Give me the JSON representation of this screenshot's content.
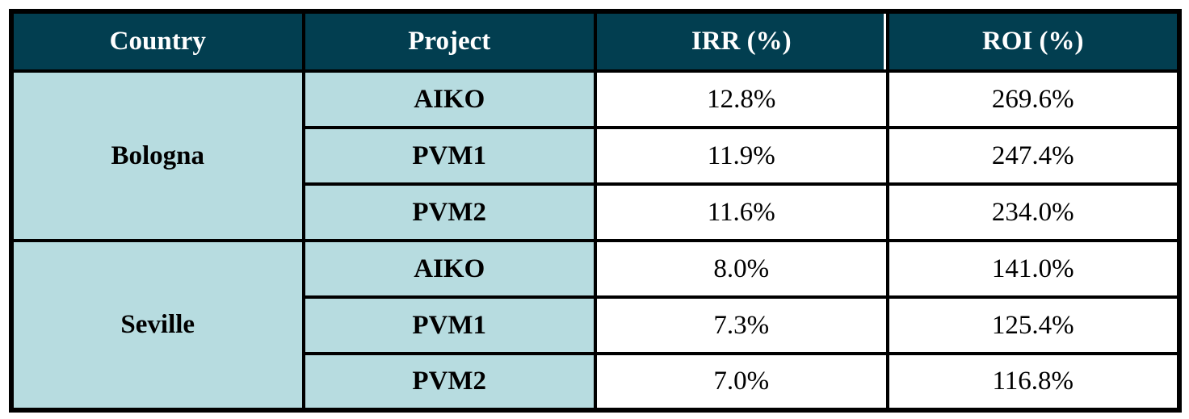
{
  "table": {
    "columns": [
      "Country",
      "Project",
      "IRR (%)",
      "ROI (%)"
    ],
    "groups": [
      {
        "country": "Bologna",
        "rows": [
          {
            "project": "AIKO",
            "irr": "12.8%",
            "roi": "269.6%"
          },
          {
            "project": "PVM1",
            "irr": "11.9%",
            "roi": "247.4%"
          },
          {
            "project": "PVM2",
            "irr": "11.6%",
            "roi": "234.0%"
          }
        ]
      },
      {
        "country": "Seville",
        "rows": [
          {
            "project": "AIKO",
            "irr": "8.0%",
            "roi": "141.0%"
          },
          {
            "project": "PVM1",
            "irr": "7.3%",
            "roi": "125.4%"
          },
          {
            "project": "PVM2",
            "irr": "7.0%",
            "roi": "116.8%"
          }
        ]
      }
    ]
  },
  "colors": {
    "header_bg": "#023e50",
    "header_text": "#ffffff",
    "label_cell_bg": "#b7dce0",
    "value_cell_bg": "#ffffff",
    "border": "#000000"
  }
}
